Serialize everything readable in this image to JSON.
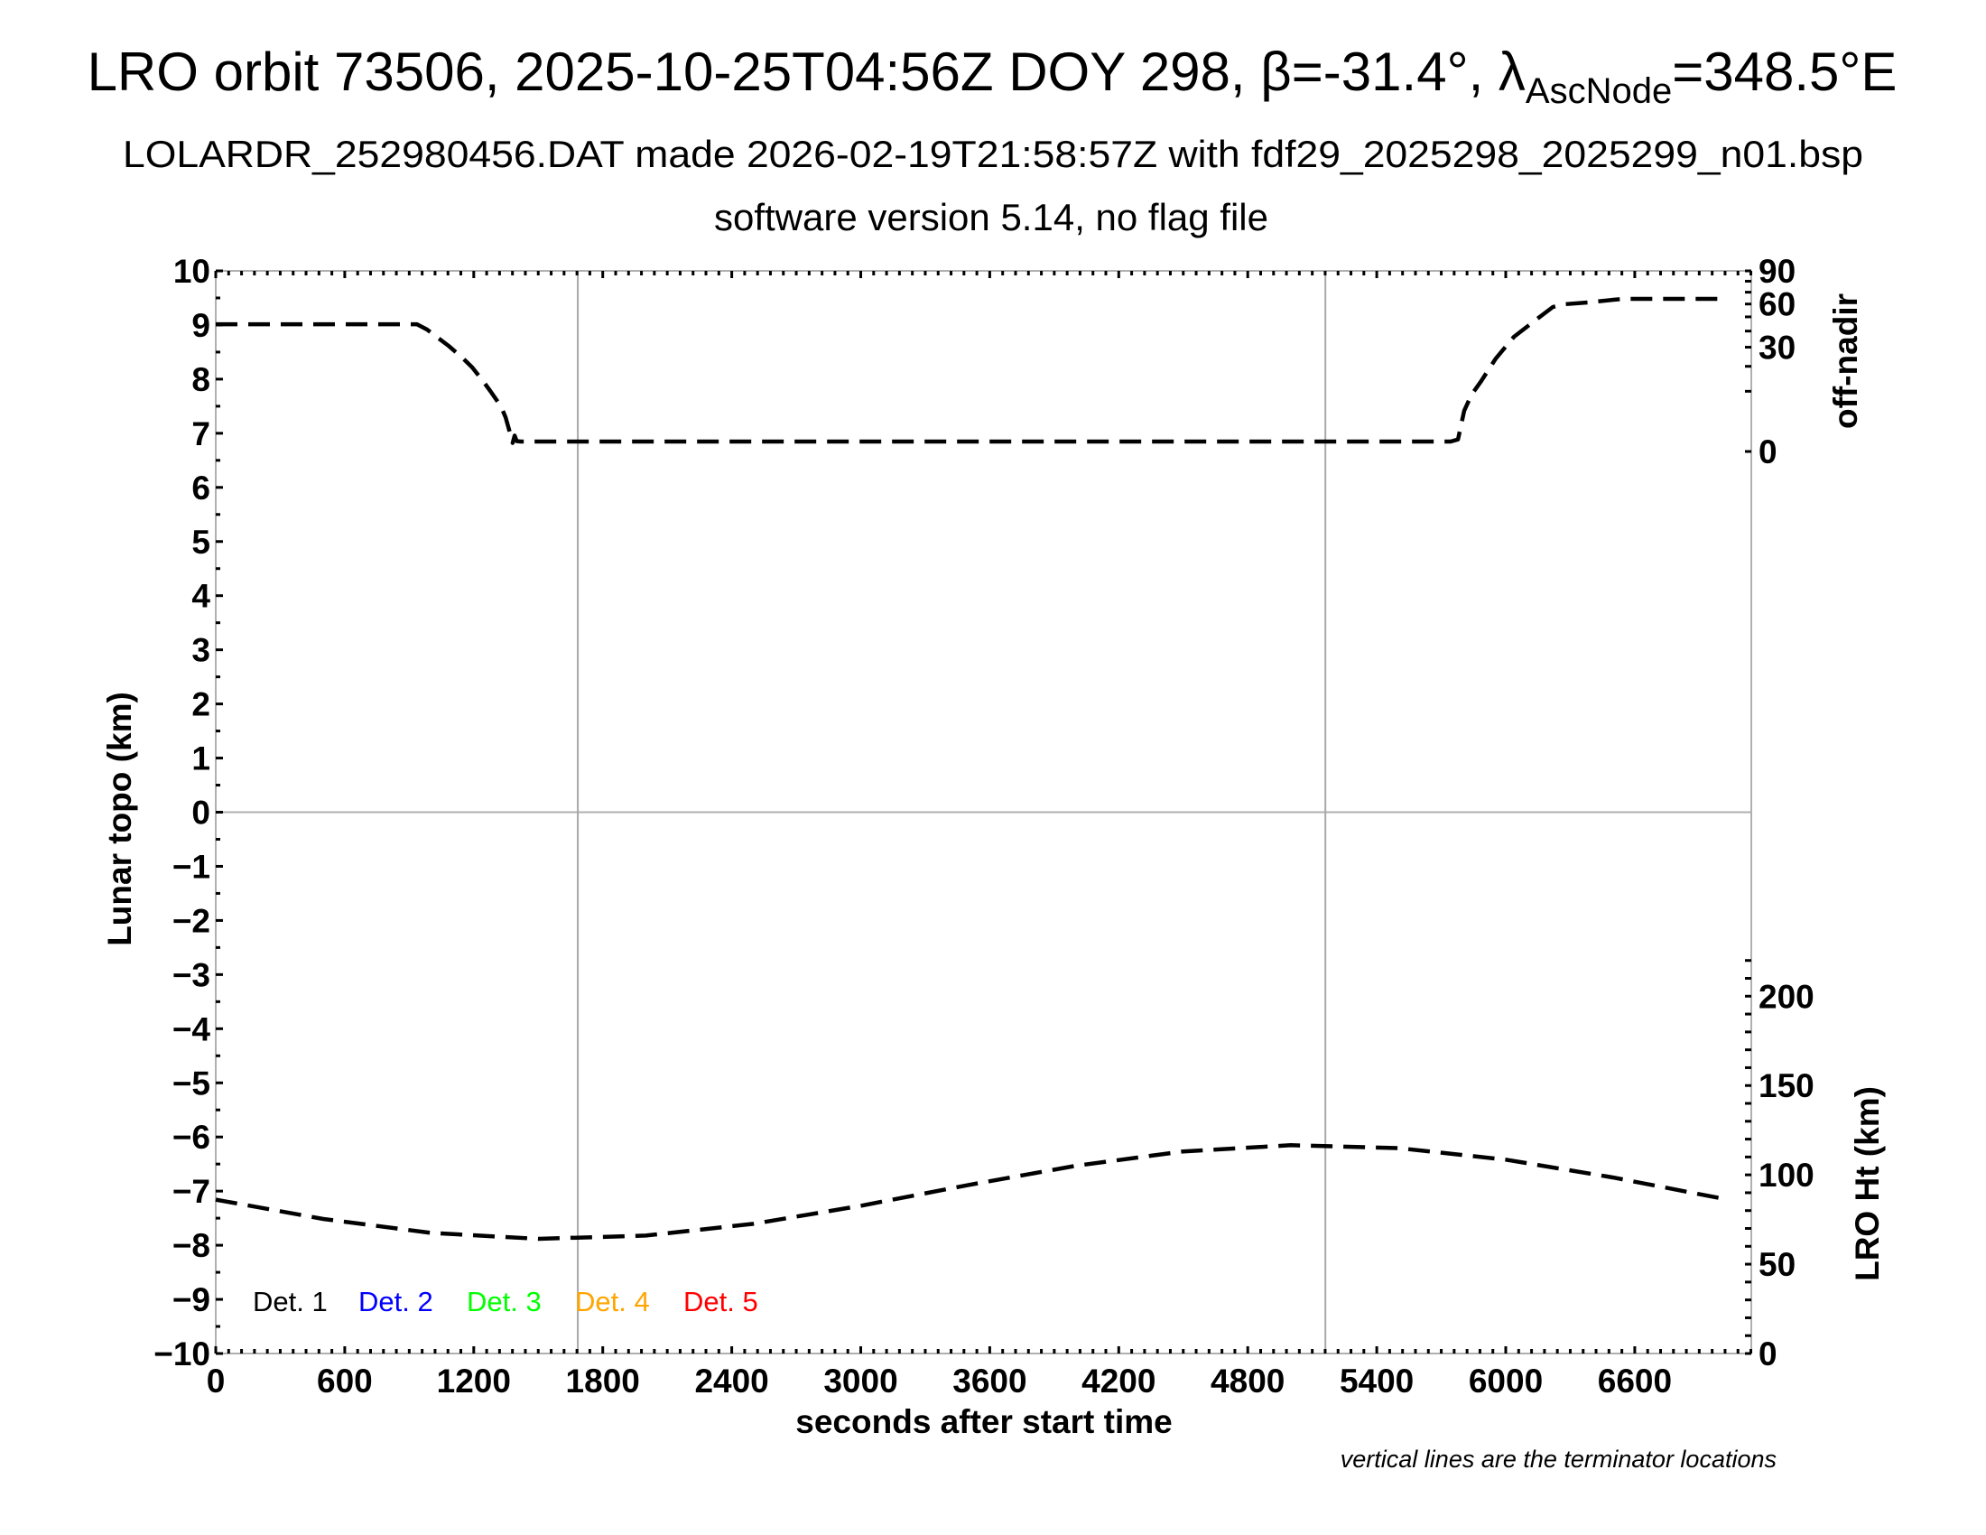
{
  "header": {
    "title_main": "LRO orbit 73506, 2025-10-25T04:56Z DOY 298, β=-31.4°, λ",
    "title_sub": "AscNode",
    "title_end": "=348.5°E",
    "subtitle_1": "LOLARDR_252980456.DAT made 2026-02-19T21:58:57Z with fdf29_2025298_2025299_n01.bsp",
    "subtitle_2": "software version 5.14, no flag file"
  },
  "footnote": "vertical lines are the terminator locations",
  "chart_data": {
    "type": "line",
    "xlabel": "seconds after start time",
    "ylabel_left": "Lunar topo (km)",
    "ylabel_right_top": "off-nadir",
    "ylabel_right_bottom": "LRO Ht (km)",
    "xlim": [
      0,
      7142
    ],
    "ylim_left": [
      -10,
      10
    ],
    "ylim_off_nadir": [
      0,
      90
    ],
    "off_nadir_scale": "sqrt",
    "ylim_height": [
      0,
      606
    ],
    "grid": false,
    "x_ticks": [
      "0",
      "600",
      "1200",
      "1800",
      "2400",
      "3000",
      "3600",
      "4200",
      "4800",
      "5400",
      "6000",
      "6600"
    ],
    "y_ticks_left": [
      "10",
      "9",
      "8",
      "7",
      "6",
      "5",
      "4",
      "3",
      "2",
      "1",
      "0",
      "−1",
      "−2",
      "−3",
      "−4",
      "−5",
      "−6",
      "−7",
      "−8",
      "−9",
      "−10"
    ],
    "y_ticks_off_nadir": [
      "90",
      "60",
      "30",
      "0"
    ],
    "y_ticks_height": [
      "0",
      "50",
      "100",
      "150",
      "200"
    ],
    "terminators_s": [
      1684,
      5161
    ],
    "zero_line_km": 0,
    "legend_placement": "bottom-left",
    "legend": [
      {
        "label": "Det. 1",
        "color": "#000000"
      },
      {
        "label": "Det. 2",
        "color": "#0000ff"
      },
      {
        "label": "Det. 3",
        "color": "#00ff00"
      },
      {
        "label": "Det. 4",
        "color": "#ffa500"
      },
      {
        "label": "Det. 5",
        "color": "#ff0000"
      }
    ],
    "series": [
      {
        "axis": "off-nadir",
        "style": "dashed",
        "color": "#000000",
        "x": [
          0,
          936,
          983,
          1083,
          1150,
          1193,
          1243,
          1277,
          1327,
          1348,
          1369,
          1381,
          1390,
          1400,
          1419,
          5744,
          5778,
          5807,
          5841,
          5883,
          5954,
          6038,
          6147,
          6219,
          6269,
          6387,
          6500,
          6546,
          7008
        ],
        "y": [
          44.7,
          44.7,
          41.0,
          30.8,
          23.9,
          19.5,
          13.7,
          10.1,
          5.6,
          3.2,
          0.9,
          0.2,
          0.7,
          0.3,
          0.27,
          0.27,
          0.4,
          4.6,
          8.9,
          13.3,
          23.9,
          36.3,
          48.6,
          57.6,
          59.8,
          61.3,
          63.5,
          64.3,
          64.3
        ]
      },
      {
        "axis": "height",
        "style": "dashed",
        "color": "#000000",
        "x": [
          0,
          500,
          1000,
          1500,
          2000,
          2500,
          3000,
          3500,
          4000,
          4500,
          5000,
          5500,
          6000,
          6500,
          7000
        ],
        "y": [
          86.1,
          75.3,
          67.5,
          64.2,
          66.0,
          72.6,
          82.7,
          94.3,
          105.1,
          113.1,
          116.6,
          115.0,
          108.5,
          98.5,
          86.9
        ]
      }
    ]
  },
  "colors": {
    "axis": "#b0b0b0",
    "terminator": "#a8a8a8"
  }
}
